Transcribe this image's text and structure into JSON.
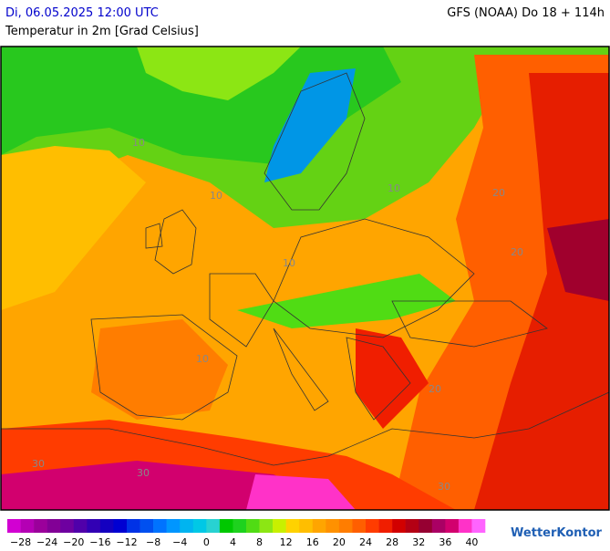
{
  "header": {
    "datetime": "Di, 06.05.2025 12:00 UTC",
    "parameter": "Temperatur in 2m [Grad Celsius]",
    "model": "GFS (NOAA) Do 18 + 114h"
  },
  "map": {
    "contour_labels": [
      "10",
      "10",
      "10",
      "10",
      "10",
      "20",
      "20",
      "20",
      "30",
      "30",
      "30"
    ]
  },
  "colorbar": {
    "colors": [
      "#d200d2",
      "#b400b4",
      "#9b009b",
      "#820096",
      "#6e00a0",
      "#5000aa",
      "#3200b4",
      "#1400c0",
      "#0000d2",
      "#0032e6",
      "#0050f0",
      "#0073ff",
      "#0096ff",
      "#00b4f0",
      "#00c8e6",
      "#28d2d2",
      "#00c800",
      "#1ed21e",
      "#50dc14",
      "#8ce614",
      "#c8f000",
      "#ffd200",
      "#ffbe00",
      "#ffa500",
      "#ff9100",
      "#ff7d00",
      "#ff5f00",
      "#ff3c00",
      "#f01e00",
      "#d20000",
      "#b40014",
      "#960032",
      "#aa0064",
      "#d2006e",
      "#ff32c8",
      "#ff64ff"
    ],
    "labels": [
      "−28",
      "−24",
      "−20",
      "−16",
      "−12",
      "−8",
      "−4",
      "0",
      "4",
      "8",
      "12",
      "16",
      "20",
      "24",
      "28",
      "32",
      "36",
      "40"
    ]
  },
  "logo": "WetterKontor"
}
